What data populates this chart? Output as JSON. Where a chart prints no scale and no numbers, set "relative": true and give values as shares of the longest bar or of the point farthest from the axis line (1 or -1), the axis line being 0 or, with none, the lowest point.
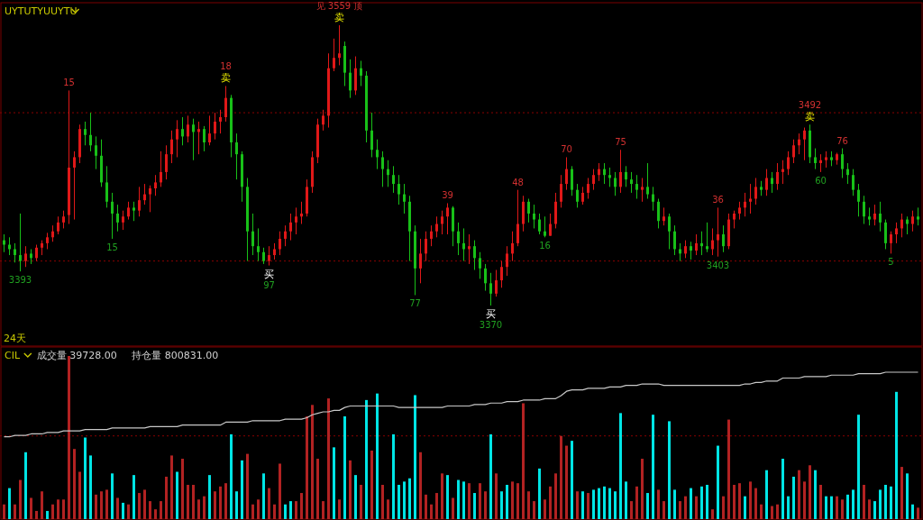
{
  "chart_data": [
    {
      "type": "candlestick",
      "title": "UYTUTYUUYTU",
      "categories": [
        null,
        null,
        null,
        null,
        null,
        null,
        null,
        null,
        null,
        null,
        null,
        null,
        null,
        null,
        null,
        null,
        null,
        null,
        null,
        null,
        null,
        null,
        null,
        null,
        null,
        null,
        null,
        null,
        null,
        null,
        null,
        null,
        null,
        null,
        null,
        null,
        null,
        null,
        null,
        null,
        null,
        null,
        null,
        null,
        null,
        null,
        null,
        null,
        null,
        null,
        null,
        null,
        null,
        null,
        null,
        null,
        null,
        null,
        null,
        null,
        null,
        null,
        null,
        null,
        null,
        null,
        null,
        null,
        null,
        null,
        null,
        null,
        null,
        null,
        null,
        null,
        null,
        null,
        null,
        null,
        null,
        null,
        null,
        null,
        null,
        null,
        null,
        null,
        null,
        null,
        null,
        null,
        null,
        null,
        null,
        null,
        null,
        null,
        null,
        null,
        null,
        null,
        null,
        null,
        null,
        null,
        null,
        null,
        null,
        null,
        null,
        null,
        null,
        null,
        null,
        null,
        null,
        null,
        null,
        null,
        null,
        null,
        null,
        null,
        null,
        null,
        null,
        null,
        null,
        null,
        null,
        null,
        null,
        null,
        null,
        null,
        null,
        null,
        null,
        null,
        null,
        null,
        null,
        null,
        null,
        null,
        null,
        null,
        null,
        null,
        null,
        null,
        null,
        null,
        null,
        null,
        null,
        null,
        null,
        null,
        null,
        null,
        null,
        null,
        null,
        null,
        null,
        null,
        null,
        null
      ],
      "ohlc": [
        [
          3414,
          3418,
          3406,
          3411
        ],
        [
          3411,
          3416,
          3404,
          3408
        ],
        [
          3408,
          3412,
          3399,
          3404
        ],
        [
          3404,
          3432,
          3393,
          3400
        ],
        [
          3400,
          3410,
          3396,
          3405
        ],
        [
          3405,
          3408,
          3398,
          3402
        ],
        [
          3402,
          3411,
          3400,
          3409
        ],
        [
          3409,
          3414,
          3404,
          3412
        ],
        [
          3412,
          3419,
          3408,
          3416
        ],
        [
          3416,
          3424,
          3413,
          3420
        ],
        [
          3420,
          3430,
          3418,
          3426
        ],
        [
          3426,
          3434,
          3422,
          3430
        ],
        [
          3431,
          3515,
          3425,
          3463
        ],
        [
          3463,
          3474,
          3428,
          3470
        ],
        [
          3470,
          3492,
          3466,
          3489
        ],
        [
          3489,
          3494,
          3478,
          3485
        ],
        [
          3485,
          3500,
          3474,
          3478
        ],
        [
          3478,
          3484,
          3462,
          3471
        ],
        [
          3471,
          3482,
          3450,
          3453
        ],
        [
          3453,
          3464,
          3436,
          3440
        ],
        [
          3440,
          3446,
          3415,
          3432
        ],
        [
          3432,
          3438,
          3420,
          3426
        ],
        [
          3426,
          3434,
          3421,
          3430
        ],
        [
          3430,
          3440,
          3428,
          3436
        ],
        [
          3436,
          3440,
          3427,
          3434
        ],
        [
          3434,
          3450,
          3430,
          3441
        ],
        [
          3441,
          3452,
          3438,
          3445
        ],
        [
          3445,
          3451,
          3433,
          3449
        ],
        [
          3449,
          3458,
          3444,
          3453
        ],
        [
          3453,
          3474,
          3450,
          3460
        ],
        [
          3460,
          3478,
          3455,
          3472
        ],
        [
          3472,
          3488,
          3466,
          3482
        ],
        [
          3482,
          3495,
          3470,
          3489
        ],
        [
          3489,
          3497,
          3478,
          3484
        ],
        [
          3484,
          3498,
          3480,
          3492
        ],
        [
          3492,
          3496,
          3468,
          3487
        ],
        [
          3487,
          3494,
          3472,
          3489
        ],
        [
          3489,
          3491,
          3474,
          3480
        ],
        [
          3480,
          3498,
          3478,
          3486
        ],
        [
          3486,
          3500,
          3482,
          3494
        ],
        [
          3494,
          3502,
          3486,
          3497
        ],
        [
          3497,
          3518,
          3494,
          3510
        ],
        [
          3510,
          3512,
          3470,
          3480
        ],
        [
          3480,
          3486,
          3455,
          3472
        ],
        [
          3472,
          3474,
          3440,
          3450
        ],
        [
          3450,
          3456,
          3400,
          3420
        ],
        [
          3420,
          3432,
          3404,
          3410
        ],
        [
          3410,
          3422,
          3400,
          3406
        ],
        [
          3406,
          3409,
          3398,
          3400
        ],
        [
          3400,
          3410,
          3397,
          3404
        ],
        [
          3404,
          3412,
          3401,
          3408
        ],
        [
          3408,
          3420,
          3404,
          3415
        ],
        [
          3415,
          3424,
          3410,
          3420
        ],
        [
          3420,
          3432,
          3414,
          3426
        ],
        [
          3426,
          3436,
          3418,
          3430
        ],
        [
          3430,
          3440,
          3425,
          3432
        ],
        [
          3432,
          3455,
          3430,
          3450
        ],
        [
          3450,
          3474,
          3446,
          3470
        ],
        [
          3470,
          3496,
          3466,
          3492
        ],
        [
          3492,
          3502,
          3488,
          3498
        ],
        [
          3498,
          3540,
          3490,
          3530
        ],
        [
          3530,
          3550,
          3528,
          3537
        ],
        [
          3537,
          3559,
          3532,
          3540
        ],
        [
          3545,
          3548,
          3518,
          3527
        ],
        [
          3527,
          3536,
          3510,
          3515
        ],
        [
          3515,
          3538,
          3512,
          3530
        ],
        [
          3530,
          3535,
          3518,
          3525
        ],
        [
          3525,
          3528,
          3480,
          3488
        ],
        [
          3488,
          3500,
          3470,
          3475
        ],
        [
          3475,
          3482,
          3462,
          3470
        ],
        [
          3470,
          3474,
          3450,
          3462
        ],
        [
          3462,
          3468,
          3450,
          3458
        ],
        [
          3458,
          3464,
          3446,
          3452
        ],
        [
          3452,
          3458,
          3438,
          3445
        ],
        [
          3445,
          3452,
          3432,
          3440
        ],
        [
          3440,
          3444,
          3400,
          3420
        ],
        [
          3420,
          3424,
          3377,
          3395
        ],
        [
          3395,
          3415,
          3385,
          3405
        ],
        [
          3405,
          3420,
          3400,
          3415
        ],
        [
          3415,
          3424,
          3410,
          3420
        ],
        [
          3420,
          3430,
          3416,
          3425
        ],
        [
          3425,
          3434,
          3418,
          3430
        ],
        [
          3430,
          3439,
          3418,
          3436
        ],
        [
          3436,
          3437,
          3410,
          3420
        ],
        [
          3420,
          3426,
          3404,
          3412
        ],
        [
          3412,
          3422,
          3400,
          3408
        ],
        [
          3408,
          3418,
          3398,
          3410
        ],
        [
          3410,
          3414,
          3394,
          3402
        ],
        [
          3402,
          3406,
          3388,
          3395
        ],
        [
          3395,
          3398,
          3380,
          3385
        ],
        [
          3385,
          3392,
          3370,
          3378
        ],
        [
          3378,
          3394,
          3376,
          3387
        ],
        [
          3387,
          3400,
          3382,
          3396
        ],
        [
          3396,
          3410,
          3390,
          3405
        ],
        [
          3405,
          3420,
          3400,
          3412
        ],
        [
          3412,
          3448,
          3410,
          3425
        ],
        [
          3425,
          3444,
          3420,
          3440
        ],
        [
          3440,
          3442,
          3426,
          3432
        ],
        [
          3432,
          3438,
          3422,
          3428
        ],
        [
          3428,
          3432,
          3418,
          3420
        ],
        [
          3420,
          3430,
          3416,
          3417
        ],
        [
          3417,
          3432,
          3417,
          3425
        ],
        [
          3425,
          3446,
          3422,
          3440
        ],
        [
          3440,
          3458,
          3436,
          3452
        ],
        [
          3452,
          3470,
          3448,
          3462
        ],
        [
          3462,
          3464,
          3444,
          3448
        ],
        [
          3448,
          3452,
          3436,
          3440
        ],
        [
          3440,
          3450,
          3438,
          3446
        ],
        [
          3446,
          3456,
          3442,
          3452
        ],
        [
          3452,
          3462,
          3448,
          3458
        ],
        [
          3458,
          3466,
          3454,
          3462
        ],
        [
          3462,
          3466,
          3452,
          3458
        ],
        [
          3458,
          3463,
          3450,
          3456
        ],
        [
          3456,
          3460,
          3444,
          3450
        ],
        [
          3450,
          3475,
          3446,
          3460
        ],
        [
          3460,
          3464,
          3450,
          3455
        ],
        [
          3455,
          3460,
          3446,
          3452
        ],
        [
          3452,
          3458,
          3442,
          3448
        ],
        [
          3448,
          3456,
          3440,
          3450
        ],
        [
          3450,
          3466,
          3442,
          3445
        ],
        [
          3445,
          3450,
          3434,
          3440
        ],
        [
          3440,
          3442,
          3422,
          3427
        ],
        [
          3427,
          3436,
          3424,
          3430
        ],
        [
          3430,
          3432,
          3408,
          3420
        ],
        [
          3420,
          3424,
          3404,
          3408
        ],
        [
          3408,
          3412,
          3400,
          3405
        ],
        [
          3405,
          3414,
          3402,
          3410
        ],
        [
          3410,
          3413,
          3401,
          3407
        ],
        [
          3407,
          3418,
          3404,
          3412
        ],
        [
          3412,
          3420,
          3404,
          3410
        ],
        [
          3410,
          3426,
          3406,
          3408
        ],
        [
          3408,
          3422,
          3404,
          3414
        ],
        [
          3414,
          3436,
          3403,
          3418
        ],
        [
          3418,
          3424,
          3406,
          3410
        ],
        [
          3410,
          3432,
          3408,
          3428
        ],
        [
          3428,
          3434,
          3422,
          3432
        ],
        [
          3432,
          3440,
          3428,
          3436
        ],
        [
          3436,
          3446,
          3430,
          3440
        ],
        [
          3440,
          3452,
          3432,
          3442
        ],
        [
          3442,
          3456,
          3438,
          3450
        ],
        [
          3450,
          3454,
          3444,
          3448
        ],
        [
          3448,
          3462,
          3444,
          3456
        ],
        [
          3456,
          3460,
          3446,
          3452
        ],
        [
          3452,
          3466,
          3448,
          3460
        ],
        [
          3460,
          3468,
          3452,
          3462
        ],
        [
          3462,
          3474,
          3458,
          3470
        ],
        [
          3470,
          3482,
          3466,
          3478
        ],
        [
          3478,
          3486,
          3472,
          3482
        ],
        [
          3482,
          3490,
          3468,
          3488
        ],
        [
          3488,
          3492,
          3466,
          3470
        ],
        [
          3470,
          3476,
          3462,
          3466
        ],
        [
          3466,
          3472,
          3460,
          3468
        ],
        [
          3468,
          3474,
          3463,
          3470
        ],
        [
          3470,
          3474,
          3464,
          3468
        ],
        [
          3468,
          3473,
          3465,
          3472
        ],
        [
          3472,
          3476,
          3456,
          3462
        ],
        [
          3462,
          3466,
          3452,
          3458
        ],
        [
          3458,
          3462,
          3444,
          3448
        ],
        [
          3448,
          3452,
          3430,
          3440
        ],
        [
          3440,
          3444,
          3425,
          3430
        ],
        [
          3430,
          3436,
          3424,
          3428
        ],
        [
          3428,
          3438,
          3424,
          3432
        ],
        [
          3432,
          3440,
          3420,
          3426
        ],
        [
          3426,
          3428,
          3408,
          3412
        ],
        [
          3412,
          3420,
          3405,
          3418
        ],
        [
          3418,
          3426,
          3412,
          3422
        ],
        [
          3422,
          3432,
          3416,
          3428
        ],
        [
          3428,
          3430,
          3418,
          3425
        ],
        [
          3425,
          3434,
          3420,
          3430
        ],
        [
          3430,
          3436,
          3424,
          3428
        ]
      ],
      "colors": [
        "#18c018",
        "#18c018",
        "#18c018",
        "#18c018",
        "#e01818",
        "#18c018",
        "#e01818",
        "#e01818",
        "#e01818",
        "#e01818",
        "#e01818",
        "#e01818",
        "#e01818",
        "#e01818",
        "#e01818",
        "#18c018",
        "#18c018",
        "#18c018",
        "#18c018",
        "#18c018",
        "#18c018",
        "#18c018",
        "#e01818",
        "#e01818",
        "#18c018",
        "#e01818",
        "#e01818",
        "#e01818",
        "#e01818",
        "#e01818",
        "#e01818",
        "#e01818",
        "#e01818",
        "#18c018",
        "#e01818",
        "#18c018",
        "#e01818",
        "#18c018",
        "#e01818",
        "#e01818",
        "#e01818",
        "#e01818",
        "#18c018",
        "#18c018",
        "#18c018",
        "#18c018",
        "#18c018",
        "#18c018",
        "#18c018",
        "#e01818",
        "#e01818",
        "#e01818",
        "#e01818",
        "#e01818",
        "#e01818",
        "#e01818",
        "#e01818",
        "#e01818",
        "#e01818",
        "#e01818",
        "#e01818",
        "#e01818",
        "#e01818",
        "#18c018",
        "#18c018",
        "#e01818",
        "#18c018",
        "#18c018",
        "#18c018",
        "#18c018",
        "#18c018",
        "#18c018",
        "#18c018",
        "#18c018",
        "#18c018",
        "#18c018",
        "#18c018",
        "#e01818",
        "#e01818",
        "#e01818",
        "#e01818",
        "#e01818",
        "#e01818",
        "#18c018",
        "#18c018",
        "#18c018",
        "#e01818",
        "#18c018",
        "#18c018",
        "#18c018",
        "#18c018",
        "#e01818",
        "#e01818",
        "#e01818",
        "#e01818",
        "#e01818",
        "#e01818",
        "#18c018",
        "#18c018",
        "#18c018",
        "#18c018",
        "#e01818",
        "#e01818",
        "#e01818",
        "#e01818",
        "#18c018",
        "#18c018",
        "#e01818",
        "#e01818",
        "#e01818",
        "#e01818",
        "#18c018",
        "#18c018",
        "#18c018",
        "#e01818",
        "#18c018",
        "#18c018",
        "#18c018",
        "#e01818",
        "#18c018",
        "#18c018",
        "#18c018",
        "#e01818",
        "#18c018",
        "#18c018",
        "#18c018",
        "#e01818",
        "#18c018",
        "#e01818",
        "#18c018",
        "#18c018",
        "#e01818",
        "#e01818",
        "#18c018",
        "#e01818",
        "#e01818",
        "#e01818",
        "#e01818",
        "#e01818",
        "#e01818",
        "#18c018",
        "#e01818",
        "#18c018",
        "#e01818",
        "#e01818",
        "#e01818",
        "#e01818",
        "#e01818",
        "#e01818",
        "#18c018",
        "#18c018",
        "#e01818",
        "#e01818",
        "#18c018",
        "#e01818",
        "#18c018",
        "#18c018",
        "#18c018",
        "#18c018",
        "#18c018",
        "#18c018",
        "#e01818",
        "#18c018",
        "#18c018",
        "#e01818",
        "#e01818",
        "#e01818",
        "#18c018",
        "#e01818",
        "#18c018"
      ],
      "ref_lines": [
        {
          "axis": "y",
          "value": 3500,
          "color": "#8b0000",
          "line_style": "dotted"
        },
        {
          "axis": "y",
          "value": 3400,
          "color": "#8b0000",
          "line_style": "dotted"
        }
      ],
      "annotations": [
        {
          "text": "15",
          "y": 3515
        },
        {
          "text": "3393",
          "y": 3393
        },
        {
          "text": "15",
          "y": 3415
        },
        {
          "text": "18",
          "y": 3518
        },
        {
          "text": "卖",
          "y": 3518
        },
        {
          "text": "97",
          "y": 3397
        },
        {
          "text": "买",
          "y": 3397
        },
        {
          "text": "见 3559 顶",
          "y": 3559
        },
        {
          "text": "卖",
          "y": 3559
        },
        {
          "text": "77",
          "y": 3377
        },
        {
          "text": "39",
          "y": 3439
        },
        {
          "text": "3370",
          "y": 3370
        },
        {
          "text": "买",
          "y": 3370
        },
        {
          "text": "48",
          "y": 3448
        },
        {
          "text": "16",
          "y": 3416
        },
        {
          "text": "70",
          "y": 3470
        },
        {
          "text": "36",
          "y": 3436
        },
        {
          "text": "75",
          "y": 3475
        },
        {
          "text": "3403",
          "y": 3403
        },
        {
          "text": "3492",
          "y": 3492
        },
        {
          "text": "卖",
          "y": 3492
        },
        {
          "text": "60",
          "y": 3460
        },
        {
          "text": "76",
          "y": 3476
        },
        {
          "text": "5",
          "y": 3405
        },
        "24天"
      ]
    },
    {
      "type": "bar",
      "title": "CIL",
      "relative": true,
      "categories": [
        null,
        null,
        null,
        null,
        null,
        null,
        null,
        null,
        null,
        null,
        null,
        null,
        null,
        null,
        null,
        null,
        null,
        null,
        null,
        null,
        null,
        null,
        null,
        null,
        null,
        null,
        null,
        null,
        null,
        null,
        null,
        null,
        null,
        null,
        null,
        null,
        null,
        null,
        null,
        null,
        null,
        null,
        null,
        null,
        null,
        null,
        null,
        null,
        null,
        null,
        null,
        null,
        null,
        null,
        null,
        null,
        null,
        null,
        null,
        null,
        null,
        null,
        null,
        null,
        null,
        null,
        null,
        null,
        null,
        null,
        null,
        null,
        null,
        null,
        null,
        null,
        null,
        null,
        null,
        null,
        null,
        null,
        null,
        null,
        null,
        null,
        null,
        null,
        null,
        null,
        null,
        null,
        null,
        null,
        null,
        null,
        null,
        null,
        null,
        null,
        null,
        null,
        null,
        null,
        null,
        null,
        null,
        null,
        null,
        null,
        null,
        null,
        null,
        null,
        null,
        null,
        null,
        null,
        null,
        null,
        null,
        null,
        null,
        null,
        null,
        null,
        null,
        null,
        null,
        null,
        null,
        null,
        null,
        null,
        null,
        null,
        null,
        null,
        null,
        null,
        null,
        null,
        null,
        null,
        null,
        null,
        null,
        null,
        null,
        null,
        null,
        null,
        null,
        null,
        null,
        null,
        null,
        null,
        null,
        null,
        null,
        null,
        null,
        null,
        null,
        null,
        null,
        null,
        null,
        null
      ],
      "values": [
        0.09,
        0.19,
        0.09,
        0.24,
        0.41,
        0.13,
        0.05,
        0.17,
        0.05,
        0.09,
        0.12,
        0.12,
        1.0,
        0.43,
        0.29,
        0.5,
        0.39,
        0.15,
        0.17,
        0.18,
        0.28,
        0.13,
        0.1,
        0.09,
        0.27,
        0.16,
        0.18,
        0.11,
        0.06,
        0.11,
        0.26,
        0.39,
        0.29,
        0.37,
        0.21,
        0.21,
        0.12,
        0.14,
        0.27,
        0.17,
        0.2,
        0.22,
        0.52,
        0.17,
        0.36,
        0.4,
        0.09,
        0.12,
        0.28,
        0.19,
        0.09,
        0.34,
        0.09,
        0.11,
        0.11,
        0.16,
        0.63,
        0.7,
        0.37,
        0.11,
        0.74,
        0.44,
        0.12,
        0.63,
        0.36,
        0.27,
        0.21,
        0.73,
        0.42,
        0.77,
        0.21,
        0.12,
        0.52,
        0.21,
        0.23,
        0.25,
        0.76,
        0.41,
        0.15,
        0.09,
        0.16,
        0.28,
        0.27,
        0.13,
        0.24,
        0.23,
        0.22,
        0.16,
        0.22,
        0.17,
        0.52,
        0.28,
        0.17,
        0.21,
        0.23,
        0.22,
        0.71,
        0.17,
        0.11,
        0.31,
        0.12,
        0.2,
        0.28,
        0.51,
        0.45,
        0.48,
        0.17,
        0.17,
        0.16,
        0.18,
        0.19,
        0.2,
        0.19,
        0.17,
        0.65,
        0.23,
        0.11,
        0.2,
        0.37,
        0.16,
        0.64,
        0.18,
        0.11,
        0.6,
        0.18,
        0.11,
        0.14,
        0.19,
        0.14,
        0.2,
        0.21,
        0.06,
        0.45,
        0.14,
        0.61,
        0.21,
        0.22,
        0.14,
        0.23,
        0.19,
        0.09,
        0.3,
        0.08,
        0.09,
        0.37,
        0.14,
        0.26,
        0.3,
        0.23,
        0.33,
        0.3,
        0.21,
        0.14,
        0.14,
        0.14,
        0.12,
        0.15,
        0.18,
        0.64,
        0.21,
        0.12,
        0.11,
        0.18,
        0.21,
        0.2,
        0.78,
        0.32,
        0.28,
        0.09,
        0.07
      ],
      "colors": [
        "#b22222",
        "#00e5e5",
        "#b22222",
        "#b22222",
        "#00e5e5",
        "#b22222",
        "#b22222",
        "#b22222",
        "#00e5e5",
        "#b22222",
        "#b22222",
        "#b22222",
        "#b22222",
        "#b22222",
        "#b22222",
        "#00e5e5",
        "#00e5e5",
        "#b22222",
        "#b22222",
        "#b22222",
        "#00e5e5",
        "#b22222",
        "#00e5e5",
        "#b22222",
        "#00e5e5",
        "#b22222",
        "#b22222",
        "#b22222",
        "#b22222",
        "#b22222",
        "#b22222",
        "#b22222",
        "#00e5e5",
        "#b22222",
        "#b22222",
        "#b22222",
        "#b22222",
        "#b22222",
        "#00e5e5",
        "#b22222",
        "#b22222",
        "#b22222",
        "#00e5e5",
        "#00e5e5",
        "#00e5e5",
        "#b22222",
        "#b22222",
        "#b22222",
        "#00e5e5",
        "#b22222",
        "#b22222",
        "#b22222",
        "#00e5e5",
        "#00e5e5",
        "#b22222",
        "#b22222",
        "#b22222",
        "#b22222",
        "#b22222",
        "#b22222",
        "#b22222",
        "#00e5e5",
        "#b22222",
        "#00e5e5",
        "#b22222",
        "#00e5e5",
        "#b22222",
        "#00e5e5",
        "#b22222",
        "#00e5e5",
        "#b22222",
        "#b22222",
        "#00e5e5",
        "#00e5e5",
        "#00e5e5",
        "#00e5e5",
        "#00e5e5",
        "#b22222",
        "#b22222",
        "#b22222",
        "#b22222",
        "#b22222",
        "#00e5e5",
        "#b22222",
        "#00e5e5",
        "#00e5e5",
        "#b22222",
        "#00e5e5",
        "#b22222",
        "#b22222",
        "#00e5e5",
        "#b22222",
        "#00e5e5",
        "#00e5e5",
        "#b22222",
        "#b22222",
        "#b22222",
        "#b22222",
        "#b22222",
        "#00e5e5",
        "#b22222",
        "#b22222",
        "#b22222",
        "#b22222",
        "#b22222",
        "#00e5e5",
        "#b22222",
        "#00e5e5",
        "#b22222",
        "#00e5e5",
        "#00e5e5",
        "#00e5e5",
        "#00e5e5",
        "#00e5e5",
        "#00e5e5",
        "#00e5e5",
        "#b22222",
        "#b22222",
        "#b22222",
        "#00e5e5",
        "#00e5e5",
        "#b22222",
        "#b22222",
        "#00e5e5",
        "#00e5e5",
        "#b22222",
        "#b22222",
        "#00e5e5",
        "#b22222",
        "#00e5e5",
        "#00e5e5",
        "#b22222",
        "#00e5e5",
        "#b22222",
        "#b22222",
        "#b22222",
        "#b22222",
        "#00e5e5",
        "#b22222",
        "#b22222",
        "#b22222",
        "#00e5e5",
        "#b22222",
        "#b22222",
        "#00e5e5",
        "#00e5e5",
        "#00e5e5",
        "#b22222",
        "#b22222",
        "#b22222",
        "#00e5e5",
        "#b22222",
        "#00e5e5",
        "#00e5e5",
        "#b22222",
        "#b22222",
        "#00e5e5",
        "#00e5e5",
        "#00e5e5",
        "#b22222",
        "#b22222",
        "#00e5e5",
        "#00e5e5",
        "#00e5e5",
        "#00e5e5",
        "#00e5e5",
        "#b22222",
        "#00e5e5",
        "#00e5e5",
        "#b22222"
      ],
      "ref_lines": [
        {
          "axis": "y",
          "value": 0.51,
          "color": "#8b0000",
          "line_style": "dotted"
        }
      ],
      "annotations": [
        "成交量 39728.00"
      ]
    },
    {
      "type": "line",
      "relative": true,
      "categories": [
        null,
        null,
        null,
        null,
        null,
        null,
        null,
        null,
        null,
        null,
        null,
        null,
        null,
        null,
        null,
        null,
        null,
        null,
        null,
        null,
        null,
        null,
        null,
        null,
        null,
        null,
        null,
        null,
        null,
        null,
        null,
        null,
        null,
        null,
        null,
        null,
        null,
        null,
        null,
        null,
        null,
        null,
        null,
        null,
        null,
        null,
        null,
        null,
        null,
        null,
        null,
        null,
        null,
        null,
        null,
        null,
        null,
        null,
        null,
        null,
        null,
        null,
        null,
        null,
        null,
        null,
        null,
        null,
        null,
        null,
        null,
        null,
        null,
        null,
        null,
        null,
        null,
        null,
        null,
        null,
        null,
        null,
        null,
        null,
        null,
        null,
        null,
        null,
        null,
        null,
        null,
        null,
        null,
        null,
        null,
        null,
        null,
        null,
        null,
        null,
        null,
        null,
        null,
        null,
        null,
        null,
        null,
        null,
        null,
        null,
        null,
        null,
        null,
        null,
        null,
        null,
        null,
        null,
        null,
        null,
        null,
        null,
        null,
        null,
        null,
        null,
        null,
        null,
        null,
        null,
        null,
        null,
        null,
        null,
        null,
        null,
        null,
        null,
        null,
        null,
        null,
        null,
        null,
        null,
        null,
        null,
        null,
        null,
        null,
        null,
        null,
        null,
        null,
        null,
        null,
        null,
        null,
        null,
        null,
        null,
        null,
        null,
        null,
        null,
        null,
        null,
        null,
        null,
        null,
        null
      ],
      "series": [
        {
          "color": "#c8c8c8",
          "values": [
            0.56,
            0.56,
            0.57,
            0.57,
            0.57,
            0.58,
            0.58,
            0.58,
            0.59,
            0.59,
            0.59,
            0.6,
            0.6,
            0.6,
            0.6,
            0.61,
            0.61,
            0.61,
            0.61,
            0.61,
            0.62,
            0.62,
            0.62,
            0.62,
            0.62,
            0.62,
            0.62,
            0.63,
            0.63,
            0.63,
            0.63,
            0.63,
            0.63,
            0.64,
            0.64,
            0.64,
            0.64,
            0.64,
            0.64,
            0.64,
            0.64,
            0.66,
            0.66,
            0.66,
            0.66,
            0.66,
            0.67,
            0.67,
            0.67,
            0.67,
            0.67,
            0.67,
            0.68,
            0.68,
            0.68,
            0.68,
            0.69,
            0.71,
            0.72,
            0.73,
            0.73,
            0.74,
            0.74,
            0.76,
            0.77,
            0.77,
            0.77,
            0.77,
            0.77,
            0.77,
            0.77,
            0.77,
            0.77,
            0.76,
            0.76,
            0.76,
            0.76,
            0.76,
            0.76,
            0.76,
            0.76,
            0.76,
            0.77,
            0.77,
            0.77,
            0.77,
            0.77,
            0.78,
            0.78,
            0.78,
            0.79,
            0.79,
            0.79,
            0.8,
            0.8,
            0.8,
            0.81,
            0.81,
            0.81,
            0.81,
            0.82,
            0.82,
            0.82,
            0.84,
            0.87,
            0.88,
            0.88,
            0.88,
            0.89,
            0.89,
            0.89,
            0.89,
            0.9,
            0.9,
            0.9,
            0.91,
            0.91,
            0.91,
            0.92,
            0.92,
            0.92,
            0.92,
            0.91,
            0.91,
            0.91,
            0.91,
            0.91,
            0.91,
            0.91,
            0.91,
            0.91,
            0.91,
            0.91,
            0.91,
            0.91,
            0.91,
            0.91,
            0.92,
            0.92,
            0.93,
            0.93,
            0.94,
            0.94,
            0.94,
            0.96,
            0.96,
            0.96,
            0.96,
            0.97,
            0.97,
            0.97,
            0.97,
            0.97,
            0.98,
            0.98,
            0.98,
            0.98,
            0.98,
            0.99,
            0.99,
            0.99,
            0.99,
            0.99,
            1,
            1,
            1,
            1,
            1,
            1,
            1
          ]
        }
      ],
      "annotations": [
        "持仓量 800831.00"
      ]
    }
  ]
}
